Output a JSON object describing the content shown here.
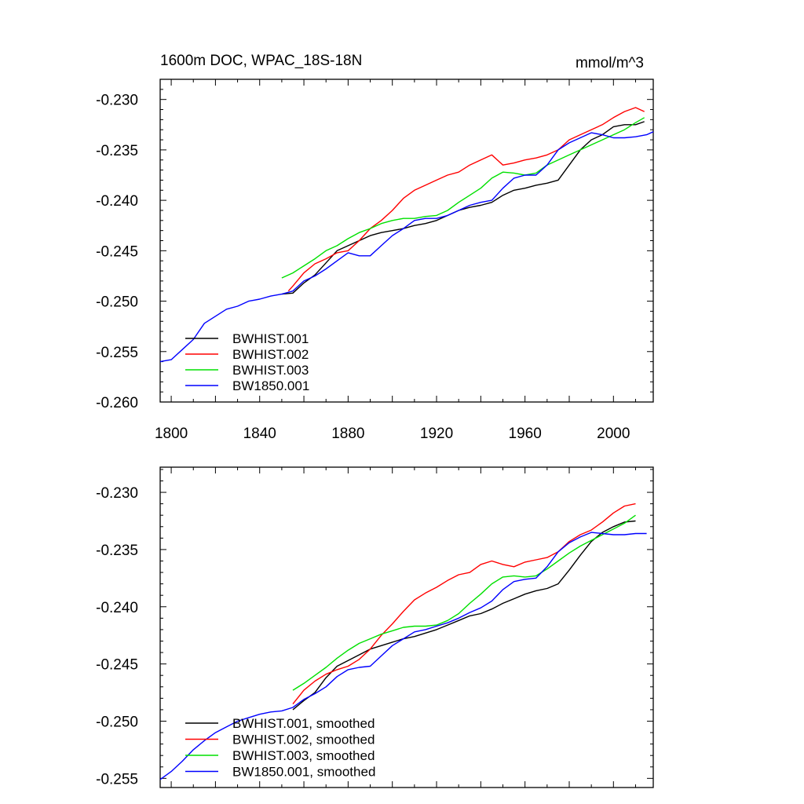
{
  "title_left": "1600m DOC, WPAC_18S-18N",
  "title_right": "mmol/m^3",
  "chart_data": [
    {
      "type": "line",
      "panel": "top",
      "xlim": [
        1795,
        2018
      ],
      "ylim": [
        -0.26,
        -0.228
      ],
      "xticks": [
        1800,
        1840,
        1880,
        1920,
        1960,
        2000
      ],
      "yticks": [
        -0.26,
        -0.255,
        -0.25,
        -0.245,
        -0.24,
        -0.235,
        -0.23
      ],
      "ytick_labels": [
        "-0.260",
        "-0.255",
        "-0.250",
        "-0.245",
        "-0.240",
        "-0.235",
        "-0.230"
      ],
      "legend_position": "bottom-left",
      "grid": false,
      "series": [
        {
          "name": "BWHIST.001",
          "color": "#000000",
          "x": [
            1850,
            1855,
            1860,
            1865,
            1870,
            1875,
            1880,
            1885,
            1890,
            1895,
            1900,
            1905,
            1910,
            1915,
            1920,
            1925,
            1930,
            1935,
            1940,
            1945,
            1950,
            1955,
            1960,
            1965,
            1970,
            1975,
            1980,
            1985,
            1990,
            1995,
            2000,
            2005,
            2010,
            2014
          ],
          "y": [
            -0.2493,
            -0.2492,
            -0.2482,
            -0.2474,
            -0.2462,
            -0.245,
            -0.2445,
            -0.244,
            -0.2435,
            -0.2432,
            -0.243,
            -0.2428,
            -0.2425,
            -0.2423,
            -0.242,
            -0.2415,
            -0.241,
            -0.2407,
            -0.2405,
            -0.2402,
            -0.2395,
            -0.239,
            -0.2388,
            -0.2385,
            -0.2383,
            -0.238,
            -0.2365,
            -0.235,
            -0.234,
            -0.2335,
            -0.2327,
            -0.2325,
            -0.2325,
            -0.2322
          ]
        },
        {
          "name": "BWHIST.002",
          "color": "#ff0000",
          "x": [
            1853,
            1855,
            1860,
            1865,
            1870,
            1875,
            1880,
            1885,
            1890,
            1895,
            1900,
            1905,
            1910,
            1915,
            1920,
            1925,
            1930,
            1935,
            1940,
            1945,
            1950,
            1955,
            1960,
            1965,
            1970,
            1975,
            1980,
            1985,
            1990,
            1995,
            2000,
            2005,
            2010,
            2014
          ],
          "y": [
            -0.249,
            -0.2485,
            -0.2472,
            -0.2463,
            -0.2458,
            -0.2452,
            -0.245,
            -0.244,
            -0.2428,
            -0.242,
            -0.241,
            -0.2398,
            -0.239,
            -0.2385,
            -0.238,
            -0.2375,
            -0.2372,
            -0.2365,
            -0.236,
            -0.2355,
            -0.2365,
            -0.2363,
            -0.236,
            -0.2358,
            -0.2355,
            -0.235,
            -0.234,
            -0.2335,
            -0.233,
            -0.2325,
            -0.2318,
            -0.2312,
            -0.2308,
            -0.2312
          ]
        },
        {
          "name": "BWHIST.003",
          "color": "#00e000",
          "x": [
            1850,
            1855,
            1860,
            1865,
            1870,
            1875,
            1880,
            1885,
            1890,
            1895,
            1900,
            1905,
            1910,
            1915,
            1920,
            1925,
            1930,
            1935,
            1940,
            1945,
            1950,
            1955,
            1960,
            1965,
            1970,
            1975,
            1980,
            1985,
            1990,
            1995,
            2000,
            2005,
            2010,
            2014
          ],
          "y": [
            -0.2477,
            -0.2472,
            -0.2465,
            -0.2458,
            -0.245,
            -0.2445,
            -0.2438,
            -0.2432,
            -0.2428,
            -0.2423,
            -0.242,
            -0.2418,
            -0.2418,
            -0.2416,
            -0.2415,
            -0.241,
            -0.2402,
            -0.2395,
            -0.2388,
            -0.2378,
            -0.2372,
            -0.2373,
            -0.2375,
            -0.2373,
            -0.2365,
            -0.236,
            -0.2355,
            -0.235,
            -0.2345,
            -0.234,
            -0.2335,
            -0.233,
            -0.2323,
            -0.2318
          ]
        },
        {
          "name": "BW1850.001",
          "color": "#0000ff",
          "x": [
            1795,
            1800,
            1805,
            1810,
            1815,
            1820,
            1825,
            1830,
            1835,
            1840,
            1845,
            1850,
            1855,
            1860,
            1865,
            1870,
            1875,
            1880,
            1885,
            1890,
            1895,
            1900,
            1905,
            1910,
            1915,
            1920,
            1925,
            1930,
            1935,
            1940,
            1945,
            1950,
            1955,
            1960,
            1965,
            1970,
            1975,
            1980,
            1985,
            1990,
            1995,
            2000,
            2005,
            2010,
            2015,
            2018
          ],
          "y": [
            -0.256,
            -0.2558,
            -0.2548,
            -0.2538,
            -0.2522,
            -0.2515,
            -0.2508,
            -0.2505,
            -0.25,
            -0.2498,
            -0.2495,
            -0.2493,
            -0.249,
            -0.248,
            -0.2475,
            -0.2468,
            -0.246,
            -0.2452,
            -0.2455,
            -0.2455,
            -0.2445,
            -0.2435,
            -0.2428,
            -0.242,
            -0.2418,
            -0.2418,
            -0.2415,
            -0.241,
            -0.2405,
            -0.2402,
            -0.24,
            -0.2388,
            -0.2378,
            -0.2375,
            -0.2375,
            -0.2365,
            -0.235,
            -0.2343,
            -0.2338,
            -0.2333,
            -0.2335,
            -0.2338,
            -0.2338,
            -0.2337,
            -0.2335,
            -0.2332
          ]
        }
      ]
    },
    {
      "type": "line",
      "panel": "bottom",
      "xlim": [
        1795,
        2018
      ],
      "ylim": [
        -0.2558,
        -0.2278
      ],
      "xticks": [
        1800,
        1840,
        1880,
        1920,
        1960,
        2000
      ],
      "yticks": [
        -0.255,
        -0.25,
        -0.245,
        -0.24,
        -0.235,
        -0.23
      ],
      "ytick_labels": [
        "-0.255",
        "-0.250",
        "-0.245",
        "-0.240",
        "-0.235",
        "-0.230"
      ],
      "legend_position": "bottom-left",
      "grid": false,
      "series": [
        {
          "name": "BWHIST.001, smoothed",
          "color": "#000000",
          "x": [
            1855,
            1860,
            1865,
            1870,
            1875,
            1880,
            1885,
            1890,
            1895,
            1900,
            1905,
            1910,
            1915,
            1920,
            1925,
            1930,
            1935,
            1940,
            1945,
            1950,
            1955,
            1960,
            1965,
            1970,
            1975,
            1980,
            1985,
            1990,
            1995,
            2000,
            2005,
            2010
          ],
          "y": [
            -0.249,
            -0.2482,
            -0.2475,
            -0.2462,
            -0.2452,
            -0.2447,
            -0.2442,
            -0.2437,
            -0.2434,
            -0.2431,
            -0.2428,
            -0.2426,
            -0.2423,
            -0.242,
            -0.2416,
            -0.2412,
            -0.2408,
            -0.2406,
            -0.2402,
            -0.2397,
            -0.2393,
            -0.2389,
            -0.2386,
            -0.2384,
            -0.238,
            -0.2368,
            -0.2355,
            -0.2343,
            -0.2335,
            -0.233,
            -0.2326,
            -0.2325
          ]
        },
        {
          "name": "BWHIST.002, smoothed",
          "color": "#ff0000",
          "x": [
            1855,
            1860,
            1865,
            1870,
            1875,
            1880,
            1885,
            1890,
            1895,
            1900,
            1905,
            1910,
            1915,
            1920,
            1925,
            1930,
            1935,
            1940,
            1945,
            1950,
            1955,
            1960,
            1965,
            1970,
            1975,
            1980,
            1985,
            1990,
            1995,
            2000,
            2005,
            2010
          ],
          "y": [
            -0.2485,
            -0.2473,
            -0.2465,
            -0.2459,
            -0.2455,
            -0.2452,
            -0.2446,
            -0.2437,
            -0.2425,
            -0.2415,
            -0.2404,
            -0.2394,
            -0.2388,
            -0.2383,
            -0.2377,
            -0.2372,
            -0.237,
            -0.2363,
            -0.236,
            -0.2363,
            -0.2365,
            -0.2361,
            -0.2359,
            -0.2357,
            -0.2352,
            -0.2343,
            -0.2337,
            -0.2333,
            -0.2326,
            -0.2318,
            -0.2312,
            -0.231
          ]
        },
        {
          "name": "BWHIST.003, smoothed",
          "color": "#00e000",
          "x": [
            1855,
            1860,
            1865,
            1870,
            1875,
            1880,
            1885,
            1890,
            1895,
            1900,
            1905,
            1910,
            1915,
            1920,
            1925,
            1930,
            1935,
            1940,
            1945,
            1950,
            1955,
            1960,
            1965,
            1970,
            1975,
            1980,
            1985,
            1990,
            1995,
            2000,
            2005,
            2010
          ],
          "y": [
            -0.2473,
            -0.2467,
            -0.246,
            -0.2453,
            -0.2445,
            -0.2438,
            -0.2432,
            -0.2428,
            -0.2424,
            -0.2421,
            -0.2418,
            -0.2417,
            -0.2417,
            -0.2416,
            -0.2412,
            -0.2406,
            -0.2397,
            -0.2389,
            -0.238,
            -0.2374,
            -0.2373,
            -0.2374,
            -0.2373,
            -0.2367,
            -0.236,
            -0.2353,
            -0.2347,
            -0.2342,
            -0.2337,
            -0.2332,
            -0.2327,
            -0.232
          ]
        },
        {
          "name": "BW1850.001, smoothed",
          "color": "#0000ff",
          "x": [
            1795,
            1800,
            1805,
            1810,
            1815,
            1820,
            1825,
            1830,
            1835,
            1840,
            1845,
            1850,
            1855,
            1860,
            1865,
            1870,
            1875,
            1880,
            1885,
            1890,
            1895,
            1900,
            1905,
            1910,
            1915,
            1920,
            1925,
            1930,
            1935,
            1940,
            1945,
            1950,
            1955,
            1960,
            1965,
            1970,
            1975,
            1980,
            1985,
            1990,
            1995,
            2000,
            2005,
            2010,
            2015
          ],
          "y": [
            -0.2551,
            -0.2544,
            -0.2535,
            -0.2525,
            -0.2517,
            -0.251,
            -0.2505,
            -0.25,
            -0.2497,
            -0.2494,
            -0.2492,
            -0.2491,
            -0.2488,
            -0.2481,
            -0.2476,
            -0.247,
            -0.2461,
            -0.2455,
            -0.2453,
            -0.2452,
            -0.2443,
            -0.2434,
            -0.2428,
            -0.2422,
            -0.242,
            -0.2417,
            -0.2414,
            -0.241,
            -0.2405,
            -0.2401,
            -0.2395,
            -0.2385,
            -0.2378,
            -0.2376,
            -0.2375,
            -0.2365,
            -0.2352,
            -0.2344,
            -0.2339,
            -0.2335,
            -0.2336,
            -0.2337,
            -0.2337,
            -0.2336,
            -0.2336
          ]
        }
      ]
    }
  ]
}
